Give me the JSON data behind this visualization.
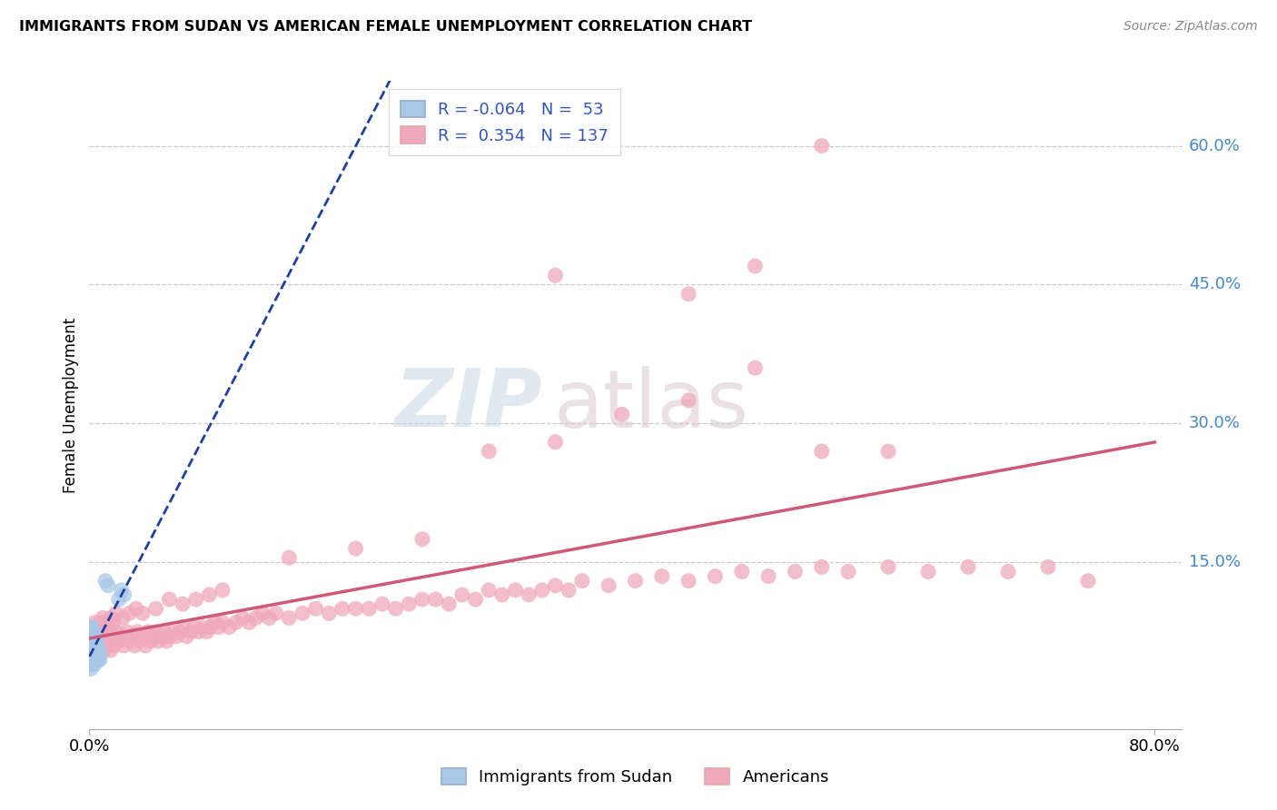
{
  "title": "IMMIGRANTS FROM SUDAN VS AMERICAN FEMALE UNEMPLOYMENT CORRELATION CHART",
  "source": "Source: ZipAtlas.com",
  "ylabel": "Female Unemployment",
  "xlim": [
    0.0,
    0.82
  ],
  "ylim": [
    -0.03,
    0.67
  ],
  "right_ytick_labels": [
    "60.0%",
    "45.0%",
    "30.0%",
    "15.0%"
  ],
  "right_ytick_vals": [
    0.6,
    0.45,
    0.3,
    0.15
  ],
  "xtick_labels": [
    "0.0%",
    "80.0%"
  ],
  "xtick_vals": [
    0.0,
    0.8
  ],
  "legend_blue_label": "Immigrants from Sudan",
  "legend_pink_label": "Americans",
  "blue_R": "-0.064",
  "blue_N": "53",
  "pink_R": "0.354",
  "pink_N": "137",
  "blue_color": "#a8c8e8",
  "pink_color": "#f0a8bc",
  "blue_line_color": "#2040a0",
  "pink_line_color": "#d05878",
  "blue_x": [
    0.001,
    0.001,
    0.001,
    0.001,
    0.001,
    0.001,
    0.001,
    0.001,
    0.001,
    0.001,
    0.002,
    0.002,
    0.002,
    0.002,
    0.002,
    0.002,
    0.002,
    0.002,
    0.002,
    0.003,
    0.003,
    0.003,
    0.003,
    0.003,
    0.003,
    0.003,
    0.003,
    0.004,
    0.004,
    0.004,
    0.004,
    0.004,
    0.004,
    0.004,
    0.005,
    0.005,
    0.005,
    0.005,
    0.005,
    0.006,
    0.006,
    0.006,
    0.006,
    0.007,
    0.007,
    0.007,
    0.008,
    0.008,
    0.012,
    0.014,
    0.022,
    0.024,
    0.026
  ],
  "blue_y": [
    0.065,
    0.07,
    0.075,
    0.08,
    0.06,
    0.055,
    0.05,
    0.045,
    0.04,
    0.035,
    0.065,
    0.07,
    0.075,
    0.06,
    0.055,
    0.05,
    0.045,
    0.04,
    0.08,
    0.065,
    0.07,
    0.06,
    0.055,
    0.05,
    0.045,
    0.04,
    0.075,
    0.065,
    0.06,
    0.055,
    0.05,
    0.045,
    0.04,
    0.07,
    0.06,
    0.055,
    0.05,
    0.045,
    0.065,
    0.055,
    0.05,
    0.045,
    0.06,
    0.05,
    0.045,
    0.055,
    0.05,
    0.045,
    0.13,
    0.125,
    0.11,
    0.12,
    0.115
  ],
  "pink_x": [
    0.001,
    0.002,
    0.003,
    0.003,
    0.004,
    0.005,
    0.005,
    0.006,
    0.007,
    0.008,
    0.009,
    0.01,
    0.011,
    0.012,
    0.013,
    0.014,
    0.015,
    0.016,
    0.017,
    0.018,
    0.019,
    0.02,
    0.022,
    0.024,
    0.026,
    0.028,
    0.03,
    0.032,
    0.034,
    0.036,
    0.038,
    0.04,
    0.042,
    0.044,
    0.046,
    0.048,
    0.05,
    0.052,
    0.054,
    0.056,
    0.058,
    0.06,
    0.062,
    0.065,
    0.068,
    0.07,
    0.073,
    0.076,
    0.079,
    0.082,
    0.085,
    0.088,
    0.091,
    0.094,
    0.097,
    0.1,
    0.105,
    0.11,
    0.115,
    0.12,
    0.125,
    0.13,
    0.135,
    0.14,
    0.15,
    0.16,
    0.17,
    0.18,
    0.19,
    0.2,
    0.21,
    0.22,
    0.23,
    0.24,
    0.25,
    0.26,
    0.27,
    0.28,
    0.29,
    0.3,
    0.31,
    0.32,
    0.33,
    0.34,
    0.35,
    0.36,
    0.37,
    0.39,
    0.41,
    0.43,
    0.45,
    0.47,
    0.49,
    0.51,
    0.53,
    0.55,
    0.57,
    0.6,
    0.63,
    0.66,
    0.69,
    0.72,
    0.75,
    0.002,
    0.004,
    0.006,
    0.008,
    0.01,
    0.012,
    0.014,
    0.016,
    0.018,
    0.02,
    0.025,
    0.03,
    0.035,
    0.04,
    0.05,
    0.06,
    0.07,
    0.08,
    0.09,
    0.1,
    0.15,
    0.2,
    0.25,
    0.3,
    0.35,
    0.4,
    0.45,
    0.5,
    0.55,
    0.6,
    0.35,
    0.45,
    0.5,
    0.55
  ],
  "pink_y": [
    0.05,
    0.065,
    0.055,
    0.07,
    0.06,
    0.075,
    0.05,
    0.08,
    0.055,
    0.07,
    0.06,
    0.075,
    0.055,
    0.065,
    0.07,
    0.06,
    0.075,
    0.055,
    0.065,
    0.07,
    0.06,
    0.075,
    0.065,
    0.07,
    0.06,
    0.075,
    0.065,
    0.07,
    0.06,
    0.075,
    0.065,
    0.07,
    0.06,
    0.075,
    0.065,
    0.07,
    0.075,
    0.065,
    0.07,
    0.075,
    0.065,
    0.07,
    0.075,
    0.07,
    0.075,
    0.08,
    0.07,
    0.075,
    0.08,
    0.075,
    0.08,
    0.075,
    0.08,
    0.085,
    0.08,
    0.085,
    0.08,
    0.085,
    0.09,
    0.085,
    0.09,
    0.095,
    0.09,
    0.095,
    0.09,
    0.095,
    0.1,
    0.095,
    0.1,
    0.1,
    0.1,
    0.105,
    0.1,
    0.105,
    0.11,
    0.11,
    0.105,
    0.115,
    0.11,
    0.12,
    0.115,
    0.12,
    0.115,
    0.12,
    0.125,
    0.12,
    0.13,
    0.125,
    0.13,
    0.135,
    0.13,
    0.135,
    0.14,
    0.135,
    0.14,
    0.145,
    0.14,
    0.145,
    0.14,
    0.145,
    0.14,
    0.145,
    0.13,
    0.08,
    0.085,
    0.08,
    0.085,
    0.09,
    0.08,
    0.085,
    0.09,
    0.085,
    0.095,
    0.09,
    0.095,
    0.1,
    0.095,
    0.1,
    0.11,
    0.105,
    0.11,
    0.115,
    0.12,
    0.155,
    0.165,
    0.175,
    0.27,
    0.28,
    0.31,
    0.325,
    0.36,
    0.27,
    0.27,
    0.46,
    0.44,
    0.47,
    0.6
  ]
}
